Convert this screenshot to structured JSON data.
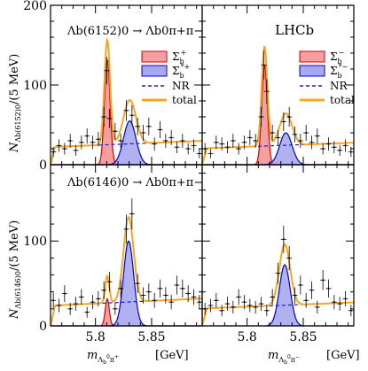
{
  "figure": {
    "experiment": "LHCb",
    "x_axis_left": "m",
    "x_axis_left_sub": "Λ",
    "x_axis_left_subsub": "b",
    "x_axis_left_sup": "0",
    "x_axis_left_tail": "π",
    "x_axis_left_tail_sup": "+",
    "x_axis_right": "m",
    "x_axis_right_sub": "Λ",
    "x_axis_right_subsub": "b",
    "x_axis_right_sup": "0",
    "x_axis_right_tail": "π",
    "x_axis_right_tail_sup": "−",
    "unit": "[GeV]",
    "top_ylabel": "N",
    "top_ylabel_sub": "Λb(6152)0",
    "top_ylabel_tail": "/(5 MeV)",
    "bottom_ylabel": "N",
    "bottom_ylabel_sub": "Λb(6146)0",
    "bottom_ylabel_tail": "/(5 MeV)",
    "top_title": "Λb(6152)0 → Λb0π+π−",
    "bottom_title": "Λb(6146)0 → Λb0π+π−",
    "top_y_ticks": [
      "0",
      "100",
      "200"
    ],
    "bottom_y_ticks": [
      "0",
      "100"
    ],
    "x_ticks": [
      "5.8",
      "5.85"
    ],
    "legend_top_left": {
      "sigma_plus": "Σ",
      "sigma_plus_sub": "b",
      "sigma_plus_sup": "+",
      "sigma_star_plus": "Σ",
      "sigma_star_plus_sub": "b",
      "sigma_star_plus_sup": "*+",
      "nr": "NR",
      "total": "total"
    },
    "legend_top_right": {
      "sigma_minus": "Σ",
      "sigma_minus_sub": "b",
      "sigma_minus_sup": "−",
      "sigma_star_minus": "Σ",
      "sigma_star_minus_sub": "b",
      "sigma_star_minus_sup": "*−",
      "nr": "NR",
      "total": "total"
    }
  },
  "colors": {
    "sigma_fill": "#f4a0a0",
    "sigma_line": "#d40000",
    "sigma_star_fill": "#a8a8f0",
    "sigma_star_line": "#0000c8",
    "nr": "#1a1adc",
    "total": "#f5a623",
    "data": "#000000"
  },
  "chart_data": [
    {
      "type": "line",
      "panel": "top-left",
      "x_range": [
        5.76,
        5.895
      ],
      "ylim": [
        0,
        200
      ],
      "components": {
        "sigma": {
          "mass": 5.8105,
          "width": 0.0025,
          "peak": 132
        },
        "sigma_star": {
          "mass": 5.8305,
          "width": 0.0055,
          "peak": 55
        },
        "nr": {
          "level": 26
        },
        "total_peak": 168
      },
      "data_points": [
        {
          "x": 5.7625,
          "y": 16
        },
        {
          "x": 5.7675,
          "y": 24
        },
        {
          "x": 5.7725,
          "y": 20
        },
        {
          "x": 5.7775,
          "y": 30
        },
        {
          "x": 5.7825,
          "y": 18
        },
        {
          "x": 5.7875,
          "y": 28
        },
        {
          "x": 5.7925,
          "y": 36
        },
        {
          "x": 5.7975,
          "y": 28
        },
        {
          "x": 5.8025,
          "y": 32
        },
        {
          "x": 5.8075,
          "y": 60
        },
        {
          "x": 5.81,
          "y": 118
        },
        {
          "x": 5.8125,
          "y": 58
        },
        {
          "x": 5.8175,
          "y": 42
        },
        {
          "x": 5.8225,
          "y": 30
        },
        {
          "x": 5.8275,
          "y": 68
        },
        {
          "x": 5.8325,
          "y": 62
        },
        {
          "x": 5.8375,
          "y": 48
        },
        {
          "x": 5.8425,
          "y": 40
        },
        {
          "x": 5.8475,
          "y": 48
        },
        {
          "x": 5.8525,
          "y": 26
        },
        {
          "x": 5.8575,
          "y": 44
        },
        {
          "x": 5.8625,
          "y": 30
        },
        {
          "x": 5.8675,
          "y": 34
        },
        {
          "x": 5.8725,
          "y": 22
        },
        {
          "x": 5.8775,
          "y": 30
        },
        {
          "x": 5.8825,
          "y": 20
        },
        {
          "x": 5.8875,
          "y": 24
        },
        {
          "x": 5.8925,
          "y": 14
        }
      ]
    },
    {
      "type": "line",
      "panel": "top-right",
      "x_range": [
        5.76,
        5.895
      ],
      "ylim": [
        0,
        200
      ],
      "components": {
        "sigma": {
          "mass": 5.8155,
          "width": 0.0025,
          "peak": 125
        },
        "sigma_star": {
          "mass": 5.8345,
          "width": 0.0055,
          "peak": 40
        },
        "nr": {
          "level": 24
        },
        "total_peak": 150
      },
      "data_points": [
        {
          "x": 5.7625,
          "y": 20
        },
        {
          "x": 5.7675,
          "y": 14
        },
        {
          "x": 5.7725,
          "y": 28
        },
        {
          "x": 5.7775,
          "y": 26
        },
        {
          "x": 5.7825,
          "y": 22
        },
        {
          "x": 5.7875,
          "y": 30
        },
        {
          "x": 5.7925,
          "y": 20
        },
        {
          "x": 5.7975,
          "y": 28
        },
        {
          "x": 5.8025,
          "y": 34
        },
        {
          "x": 5.8075,
          "y": 30
        },
        {
          "x": 5.8125,
          "y": 60
        },
        {
          "x": 5.815,
          "y": 125
        },
        {
          "x": 5.8175,
          "y": 92
        },
        {
          "x": 5.8225,
          "y": 40
        },
        {
          "x": 5.8275,
          "y": 34
        },
        {
          "x": 5.8325,
          "y": 54
        },
        {
          "x": 5.8375,
          "y": 60
        },
        {
          "x": 5.8425,
          "y": 38
        },
        {
          "x": 5.8475,
          "y": 30
        },
        {
          "x": 5.8525,
          "y": 40
        },
        {
          "x": 5.8575,
          "y": 28
        },
        {
          "x": 5.8625,
          "y": 36
        },
        {
          "x": 5.8675,
          "y": 20
        },
        {
          "x": 5.8725,
          "y": 26
        },
        {
          "x": 5.8775,
          "y": 22
        },
        {
          "x": 5.8825,
          "y": 18
        },
        {
          "x": 5.8875,
          "y": 24
        },
        {
          "x": 5.8925,
          "y": 16
        }
      ]
    },
    {
      "type": "line",
      "panel": "bottom-left",
      "x_range": [
        5.76,
        5.895
      ],
      "ylim": [
        0,
        190
      ],
      "components": {
        "sigma": {
          "mass": 5.8105,
          "width": 0.0018,
          "peak": 32
        },
        "sigma_star": {
          "mass": 5.8295,
          "width": 0.0045,
          "peak": 100
        },
        "nr": {
          "level": 28
        },
        "total_peak": 132
      },
      "data_points": [
        {
          "x": 5.7625,
          "y": 30
        },
        {
          "x": 5.7675,
          "y": 24
        },
        {
          "x": 5.7725,
          "y": 38
        },
        {
          "x": 5.7775,
          "y": 20
        },
        {
          "x": 5.7825,
          "y": 26
        },
        {
          "x": 5.7875,
          "y": 34
        },
        {
          "x": 5.7925,
          "y": 16
        },
        {
          "x": 5.7975,
          "y": 28
        },
        {
          "x": 5.8025,
          "y": 32
        },
        {
          "x": 5.8075,
          "y": 42
        },
        {
          "x": 5.8125,
          "y": 52
        },
        {
          "x": 5.8175,
          "y": 20
        },
        {
          "x": 5.8225,
          "y": 44
        },
        {
          "x": 5.8275,
          "y": 114
        },
        {
          "x": 5.8325,
          "y": 132
        },
        {
          "x": 5.8375,
          "y": 50
        },
        {
          "x": 5.8425,
          "y": 36
        },
        {
          "x": 5.8475,
          "y": 40
        },
        {
          "x": 5.8525,
          "y": 30
        },
        {
          "x": 5.8575,
          "y": 44
        },
        {
          "x": 5.8625,
          "y": 36
        },
        {
          "x": 5.8675,
          "y": 28
        },
        {
          "x": 5.8725,
          "y": 48
        },
        {
          "x": 5.8775,
          "y": 44
        },
        {
          "x": 5.8825,
          "y": 38
        },
        {
          "x": 5.8875,
          "y": 34
        },
        {
          "x": 5.8925,
          "y": 28
        }
      ]
    },
    {
      "type": "line",
      "panel": "bottom-right",
      "x_range": [
        5.76,
        5.895
      ],
      "ylim": [
        0,
        190
      ],
      "components": {
        "sigma": {
          "mass": 5.815,
          "width": 0.0018,
          "peak": 0
        },
        "sigma_star": {
          "mass": 5.8335,
          "width": 0.0048,
          "peak": 72
        },
        "nr": {
          "level": 24
        },
        "total_peak": 100
      },
      "data_points": [
        {
          "x": 5.7625,
          "y": 20
        },
        {
          "x": 5.7675,
          "y": 24
        },
        {
          "x": 5.7725,
          "y": 30
        },
        {
          "x": 5.7775,
          "y": 18
        },
        {
          "x": 5.7825,
          "y": 26
        },
        {
          "x": 5.7875,
          "y": 22
        },
        {
          "x": 5.7925,
          "y": 34
        },
        {
          "x": 5.7975,
          "y": 28
        },
        {
          "x": 5.8025,
          "y": 24
        },
        {
          "x": 5.8075,
          "y": 22
        },
        {
          "x": 5.8125,
          "y": 26
        },
        {
          "x": 5.8175,
          "y": 18
        },
        {
          "x": 5.8225,
          "y": 34
        },
        {
          "x": 5.8275,
          "y": 62
        },
        {
          "x": 5.8325,
          "y": 102
        },
        {
          "x": 5.8375,
          "y": 80
        },
        {
          "x": 5.8425,
          "y": 36
        },
        {
          "x": 5.8475,
          "y": 48
        },
        {
          "x": 5.8525,
          "y": 30
        },
        {
          "x": 5.8575,
          "y": 42
        },
        {
          "x": 5.8625,
          "y": 22
        },
        {
          "x": 5.8675,
          "y": 54
        },
        {
          "x": 5.8725,
          "y": 44
        },
        {
          "x": 5.8775,
          "y": 28
        },
        {
          "x": 5.8825,
          "y": 26
        },
        {
          "x": 5.8875,
          "y": 32
        },
        {
          "x": 5.8925,
          "y": 18
        }
      ]
    }
  ]
}
